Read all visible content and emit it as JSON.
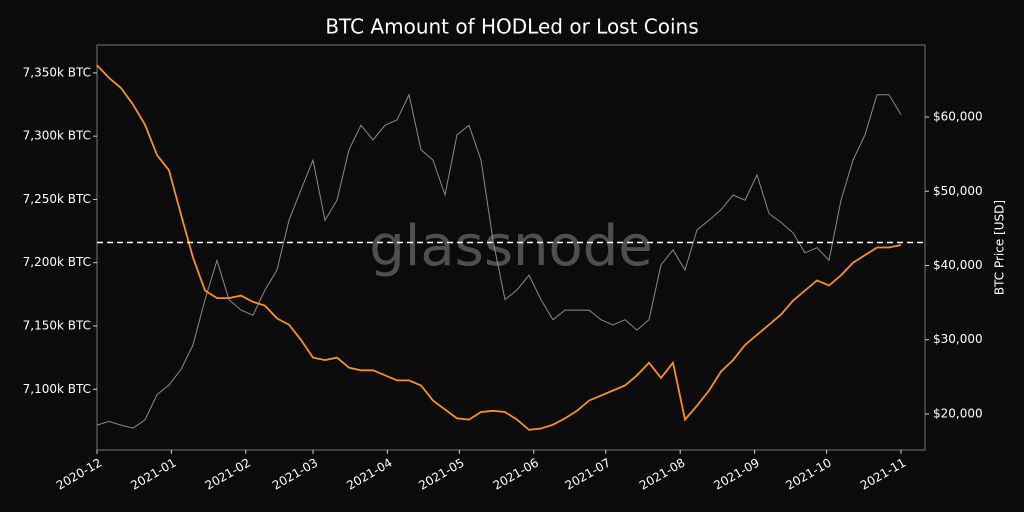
{
  "chart_data": {
    "type": "line",
    "title": "BTC Amount of HODLed or Lost Coins",
    "y2label": "BTC Price [USD]",
    "watermark": "glassnode",
    "x": [
      0,
      5,
      10,
      15,
      20,
      25,
      30,
      35,
      40,
      45,
      50,
      55,
      60,
      65,
      70,
      75,
      80,
      85,
      90,
      95,
      100,
      105,
      110,
      115,
      120,
      125,
      130,
      135,
      140,
      145,
      150,
      155,
      160,
      165,
      170,
      175,
      180,
      185,
      190,
      195,
      200,
      205,
      210,
      215,
      220,
      225,
      230,
      235,
      240,
      245,
      250,
      255,
      260,
      265,
      270,
      275,
      280,
      285,
      290,
      295,
      300,
      305,
      310,
      315,
      320,
      325,
      330,
      335
    ],
    "xlim": [
      0,
      345
    ],
    "xticks": [
      {
        "value": 0,
        "label": "2020-12"
      },
      {
        "value": 31,
        "label": "2021-01"
      },
      {
        "value": 62,
        "label": "2021-02"
      },
      {
        "value": 90,
        "label": "2021-03"
      },
      {
        "value": 121,
        "label": "2021-04"
      },
      {
        "value": 151,
        "label": "2021-05"
      },
      {
        "value": 182,
        "label": "2021-06"
      },
      {
        "value": 212,
        "label": "2021-07"
      },
      {
        "value": 243,
        "label": "2021-08"
      },
      {
        "value": 274,
        "label": "2021-09"
      },
      {
        "value": 304,
        "label": "2021-10"
      },
      {
        "value": 335,
        "label": "2021-11"
      }
    ],
    "ylim": [
      7052000,
      7372000
    ],
    "yticks": [
      {
        "value": 7100000,
        "label": "7,100k BTC"
      },
      {
        "value": 7150000,
        "label": "7,150k BTC"
      },
      {
        "value": 7200000,
        "label": "7,200k BTC"
      },
      {
        "value": 7250000,
        "label": "7,250k BTC"
      },
      {
        "value": 7300000,
        "label": "7,300k BTC"
      },
      {
        "value": 7350000,
        "label": "7,350k BTC"
      }
    ],
    "y2lim": [
      15150,
      69700
    ],
    "y2ticks": [
      {
        "value": 20000,
        "label": "$20,000"
      },
      {
        "value": 30000,
        "label": "$30,000"
      },
      {
        "value": 40000,
        "label": "$40,000"
      },
      {
        "value": 50000,
        "label": "$50,000"
      },
      {
        "value": 60000,
        "label": "$60,000"
      }
    ],
    "hline": 7216000,
    "series": [
      {
        "color": "#8a8a8a",
        "axis": "y2",
        "values": [
          18500,
          19000,
          18500,
          18100,
          19200,
          22600,
          23900,
          26000,
          29300,
          35400,
          40700,
          35400,
          34000,
          33300,
          36700,
          39400,
          46100,
          50200,
          54200,
          46100,
          48800,
          55600,
          58900,
          56900,
          58900,
          59600,
          63000,
          55600,
          54200,
          49500,
          57600,
          58900,
          54200,
          43400,
          35400,
          36700,
          38700,
          35400,
          32700,
          34000,
          34000,
          34000,
          32700,
          32000,
          32700,
          31300,
          32700,
          40100,
          42100,
          39400,
          44800,
          46100,
          47500,
          49500,
          48800,
          52200,
          47000,
          45800,
          44400,
          41700,
          42400,
          40700,
          48800,
          54200,
          57600,
          63000,
          63000,
          60300
        ]
      },
      {
        "color": "#f7931a",
        "values": [
          7356000,
          7346000,
          7338000,
          7325000,
          7309000,
          7285000,
          7273000,
          7238000,
          7204000,
          7178000,
          7172000,
          7172000,
          7174000,
          7169000,
          7166000,
          7156000,
          7151000,
          7139000,
          7125000,
          7123000,
          7125000,
          7117000,
          7115000,
          7115000,
          7111000,
          7107000,
          7107000,
          7103000,
          7091000,
          7084000,
          7077000,
          7076000,
          7082000,
          7083000,
          7082000,
          7076000,
          7068000,
          7069000,
          7072000,
          7077000,
          7083000,
          7091000,
          7095000,
          7099000,
          7103000,
          7111000,
          7121000,
          7109000,
          7121000,
          7076000,
          7087000,
          7099000,
          7114000,
          7123000,
          7135000,
          7143000,
          7151000,
          7159000,
          7170000,
          7178000,
          7186000,
          7182000,
          7190000,
          7200000,
          7206000,
          7212000,
          7212000,
          7214000
        ]
      }
    ]
  }
}
